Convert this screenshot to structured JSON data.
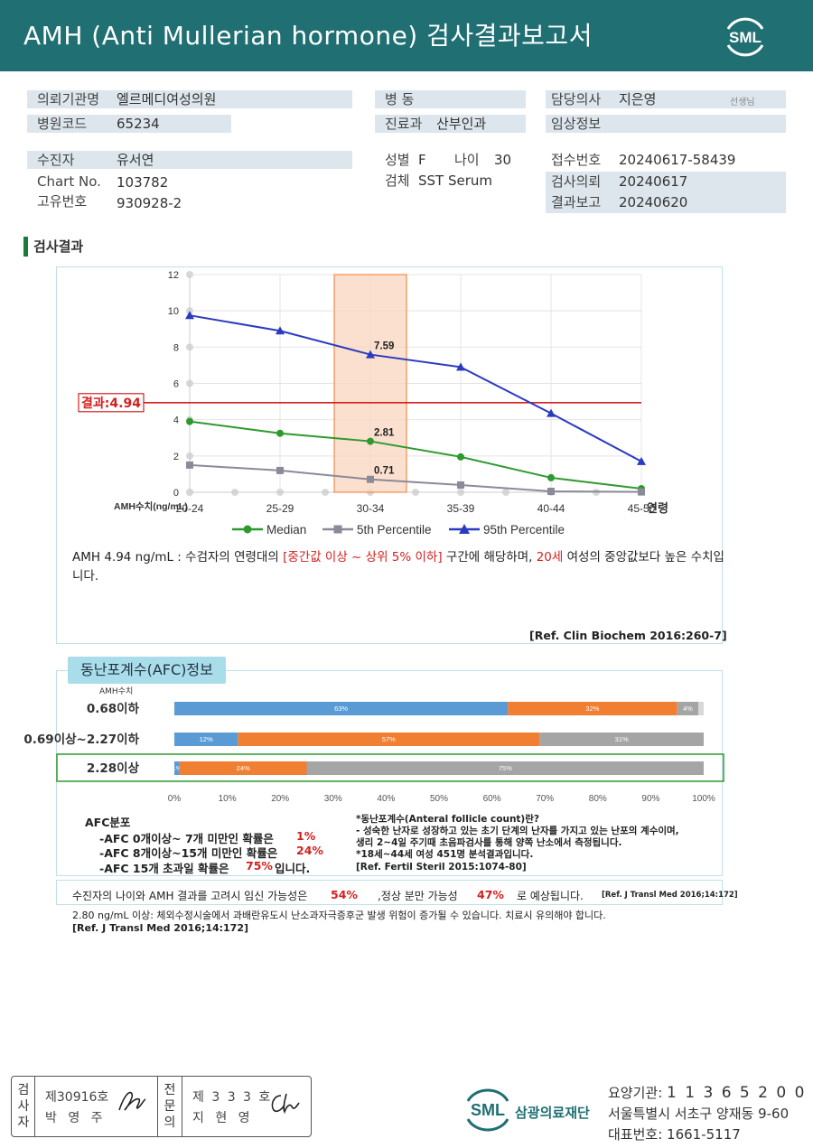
{
  "header": {
    "title": "AMH (Anti Mullerian hormone) 검사결과보고서",
    "logo_text": "SML"
  },
  "info": {
    "institution_label": "의뢰기관명",
    "institution_value": "엘르메디여성의원",
    "hospital_code_label": "병원코드",
    "hospital_code_value": "65234",
    "ward_label": "병 동",
    "dept_label": "진료과",
    "dept_value": "산부인과",
    "doctor_label": "담당의사",
    "doctor_value": "지은영",
    "doctor_suffix": "선생님",
    "clinical_label": "임상정보",
    "patient_label": "수진자",
    "patient_value": "유서연",
    "chart_label": "Chart No.",
    "chart_value": "103782",
    "unique_label": "고유번호",
    "unique_value": "930928-2",
    "sex_label": "성별",
    "sex_value": "F",
    "age_label": "나이",
    "age_value": "30",
    "specimen_label": "검체",
    "specimen_value": "SST Serum",
    "receipt_label": "접수번호",
    "receipt_value": "20240617-58439",
    "request_label": "검사의뢰",
    "request_value": "20240617",
    "report_label": "결과보고",
    "report_value": "20240620"
  },
  "section_title": "검사결과",
  "chart_data": {
    "type": "line",
    "categories": [
      "20-24",
      "25-29",
      "30-34",
      "35-39",
      "40-44",
      "45-50"
    ],
    "xlabel": "연령",
    "ylabel": "AMH수치(ng/mL)",
    "ylim": [
      0,
      12
    ],
    "yticks": [
      0,
      2,
      4,
      6,
      8,
      10,
      12
    ],
    "grid": true,
    "highlight_category": "30-34",
    "result_line": {
      "label": "결과:4.94",
      "value": 4.94
    },
    "series": [
      {
        "name": "Median",
        "values": [
          3.9,
          3.25,
          2.81,
          1.95,
          0.8,
          0.2
        ],
        "color": "#2e9a2e",
        "marker": "circle",
        "label_index": 2,
        "label": "2.81"
      },
      {
        "name": "5th Percentile",
        "values": [
          1.5,
          1.2,
          0.71,
          0.4,
          0.05,
          0.02
        ],
        "color": "#8a8a99",
        "marker": "square",
        "label_index": 2,
        "label": "0.71"
      },
      {
        "name": "95th Percentile",
        "values": [
          9.75,
          8.9,
          7.59,
          6.9,
          4.35,
          1.7
        ],
        "color": "#2b3bbf",
        "marker": "triangle",
        "label_index": 2,
        "label": "7.59"
      }
    ],
    "legend_position": "bottom"
  },
  "interpretation": {
    "part1": "AMH  4.94 ng/mL : 수검자의 연령대의 ",
    "part2": "[중간값 이상 ~ 상위 5% 이하]",
    "part3": "  구간에 해당하며, ",
    "part4": "20세",
    "part5": " 여성의 중앙값보다 높은 수치입니다.",
    "ref": "[Ref. Clin Biochem 2016:260-7]"
  },
  "afc": {
    "tab_title": "동난포계수(AFC)정보",
    "amh_header": "AMH수치",
    "xticks": [
      "0%",
      "10%",
      "20%",
      "30%",
      "40%",
      "50%",
      "60%",
      "70%",
      "80%",
      "90%",
      "100%"
    ],
    "colors": {
      "blue": "#5a9bd5",
      "orange": "#f07f32",
      "gray": "#a5a5a5",
      "highlight": "#2e9a2e"
    },
    "rows": [
      {
        "label": "0.68이하",
        "values": [
          63,
          32,
          4
        ],
        "labels": [
          "63%",
          "32%",
          "4%"
        ]
      },
      {
        "label": "0.69이상~2.27이하",
        "values": [
          12,
          57,
          31
        ],
        "labels": [
          "12%",
          "57%",
          "31%"
        ]
      },
      {
        "label": "2.28이상",
        "values": [
          1,
          24,
          75
        ],
        "labels": [
          "1%",
          "24%",
          "75%"
        ],
        "highlight": true
      }
    ],
    "dist_title": "AFC분포",
    "dist": [
      {
        "text": "-AFC  0개이상~ 7개 미만인 확률은",
        "pct": "1%"
      },
      {
        "text": "-AFC  8개이상~15개 미만인 확률은",
        "pct": "24%"
      },
      {
        "text": "-AFC  15개 초과일 확률은",
        "pct": "75%",
        "suffix": "입니다."
      }
    ],
    "definition": [
      "*동난포계수(Anteral follicle count)란?",
      "- 성숙한 난자로 성장하고 있는 초기 단계의 난자를 가지고 있는 난포의 계수이며,",
      "  생리 2~4일 주기때 초음파검사를 통해 양쪽 난소에서 측정됩니다.",
      "*18세~44세 여성 451명 분석결과입니다.",
      "[Ref. Fertil Steril 2015:1074-80]"
    ]
  },
  "pregnancy": {
    "text1": "수진자의  나이와 AMH 결과를 고려시 임신 가능성은",
    "pct1": "54%",
    "text2": ",정상 분만 가능성",
    "pct2": "47%",
    "text3": "로 예상됩니다.",
    "ref": "[Ref. J Transl Med 2016;14:172]"
  },
  "warning": {
    "text": "2.80  ng/mL  이상: 체외수정시술에서 과배란유도시 난소과자극증후군 발생 위험이 증가될 수 있습니다. 치료시 유의해야 합니다.",
    "ref": "[Ref. J Transl Med 2016;14:172]"
  },
  "signature": {
    "label1": [
      "검",
      "사",
      "자"
    ],
    "cert1": "제30916호",
    "name1": "박 영 주",
    "label2": [
      "전",
      "문",
      "의"
    ],
    "cert2": "제 3 3 3 호",
    "name2": "지 현 영"
  },
  "footer": {
    "org_name": "삼광의료재단",
    "code_label": "요양기관:",
    "code_value": "1 1 3 6 5 2 0 0",
    "address": "서울특별시 서초구 양재동 9-60",
    "phone_label": "대표번호:",
    "phone_value": "1661-5117"
  }
}
